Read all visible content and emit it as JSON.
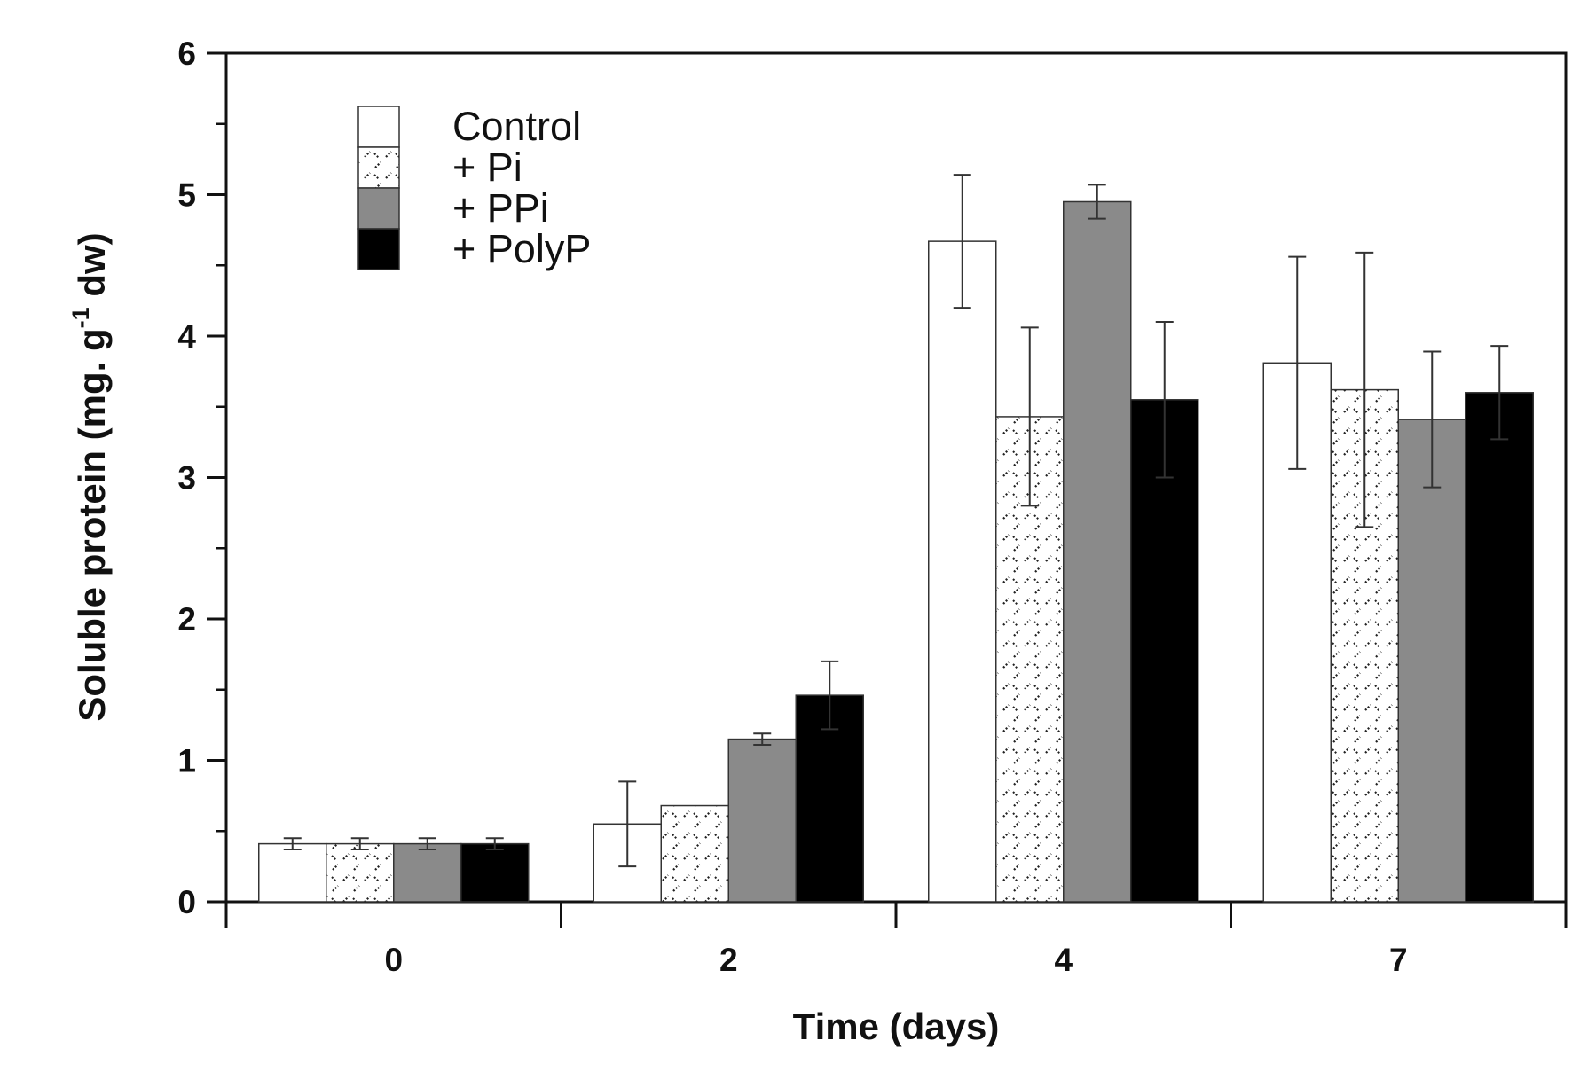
{
  "chart_data": {
    "type": "bar",
    "title": "",
    "xlabel": "Time (days)",
    "ylabel": {
      "main": "Soluble protein (mg. g",
      "superscript": "-1",
      "end": " dw)"
    },
    "categories": [
      "0",
      "2",
      "4",
      "7"
    ],
    "ylim": [
      0,
      6
    ],
    "yticks": [
      "0",
      "1",
      "2",
      "3",
      "4",
      "5",
      "6"
    ],
    "grid": false,
    "legend_position": "top-left",
    "series": [
      {
        "name": "Control",
        "fill": "white",
        "color": "#ffffff",
        "values": [
          0.41,
          0.55,
          4.67,
          3.81
        ],
        "errors": [
          0.04,
          0.3,
          0.47,
          0.75
        ]
      },
      {
        "name": "+ Pi",
        "fill": "pattern",
        "color": "#ffffff",
        "values": [
          0.41,
          0.68,
          3.43,
          3.62
        ],
        "errors": [
          0.04,
          0.0,
          0.63,
          0.97
        ]
      },
      {
        "name": "+ PPi",
        "fill": "gray",
        "color": "#8a8a8a",
        "values": [
          0.41,
          1.15,
          4.95,
          3.41
        ],
        "errors": [
          0.04,
          0.04,
          0.12,
          0.48
        ]
      },
      {
        "name": "+ PolyP",
        "fill": "black",
        "color": "#000000",
        "values": [
          0.41,
          1.46,
          3.55,
          3.6
        ],
        "errors": [
          0.04,
          0.24,
          0.55,
          0.33
        ]
      }
    ]
  }
}
